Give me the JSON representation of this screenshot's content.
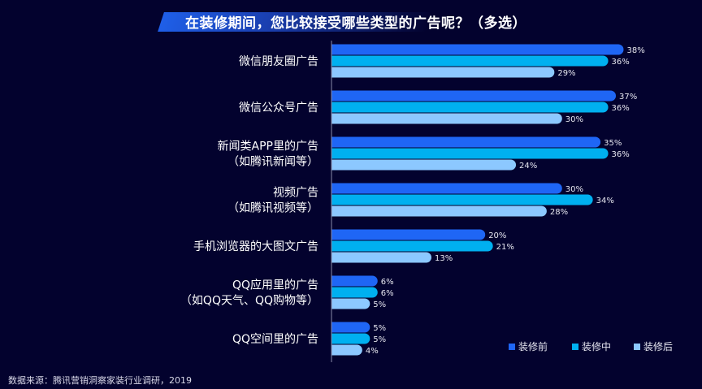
{
  "title": "在装修期间，您比较接受哪些类型的广告呢？（多选）",
  "source": "数据来源：腾讯营销洞察家装行业调研，2019",
  "chart_data": {
    "type": "bar",
    "orientation": "horizontal",
    "categories": [
      [
        "微信朋友圈广告"
      ],
      [
        "微信公众号广告"
      ],
      [
        "新闻类APP里的广告",
        "（如腾讯新闻等）"
      ],
      [
        "视频广告",
        "（如腾讯视频等）"
      ],
      [
        "手机浏览器的大图文广告"
      ],
      [
        "QQ应用里的广告",
        "（如QQ天气、QQ购物等）"
      ],
      [
        "QQ空间里的广告"
      ]
    ],
    "series": [
      {
        "name": "装修前",
        "color": "#1f66f5",
        "values": [
          38,
          37,
          35,
          30,
          20,
          6,
          5
        ]
      },
      {
        "name": "装修中",
        "color": "#00b0f0",
        "values": [
          36,
          36,
          36,
          34,
          21,
          6,
          5
        ]
      },
      {
        "name": "装修后",
        "color": "#8cc8ff",
        "values": [
          29,
          30,
          24,
          28,
          13,
          5,
          4
        ]
      }
    ],
    "value_suffix": "%",
    "legend": "bottom-right",
    "grid": false
  }
}
